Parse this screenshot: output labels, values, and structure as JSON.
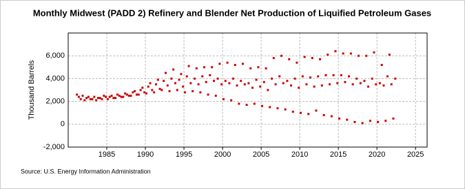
{
  "chart_data": {
    "type": "scatter",
    "title": "Monthly Midwest (PADD 2) Refinery and Blender Net Production of Liquified Petroleum Gases",
    "y_label": "Thousand Barrels",
    "source": "Source: U.S. Energy Information Administration",
    "xlim": [
      1980,
      2026.5
    ],
    "xticks": [
      1985,
      1990,
      1995,
      2000,
      2005,
      2010,
      2015,
      2020,
      2025
    ],
    "ylim": [
      -2000,
      8000
    ],
    "yticks": [
      {
        "value": -2000,
        "label": "-2,000"
      },
      0,
      {
        "value": 2000,
        "label": "2,000"
      },
      {
        "value": 4000,
        "label": "4,000"
      },
      {
        "value": 6000,
        "label": "6,000"
      }
    ],
    "grid": true,
    "color": "#cc0000",
    "x": [
      1981.125,
      1981.375,
      1981.625,
      1981.875,
      1982.125,
      1982.375,
      1982.625,
      1982.875,
      1983.125,
      1983.375,
      1983.625,
      1983.875,
      1984.125,
      1984.375,
      1984.625,
      1984.875,
      1985.125,
      1985.375,
      1985.625,
      1985.875,
      1986.125,
      1986.375,
      1986.625,
      1986.875,
      1987.125,
      1987.375,
      1987.625,
      1987.875,
      1988.125,
      1988.375,
      1988.625,
      1988.875,
      1989.125,
      1989.375,
      1989.625,
      1989.875,
      1990.125,
      1990.375,
      1990.625,
      1990.875,
      1991.125,
      1991.375,
      1991.625,
      1991.875,
      1992.125,
      1992.375,
      1992.625,
      1992.875,
      1993.125,
      1993.375,
      1993.625,
      1993.875,
      1994.125,
      1994.375,
      1994.625,
      1994.875,
      1995.125,
      1995.375,
      1995.625,
      1995.875,
      1996.125,
      1996.375,
      1996.625,
      1996.875,
      1997.125,
      1997.375,
      1997.625,
      1997.875,
      1998.125,
      1998.375,
      1998.625,
      1998.875,
      1999.125,
      1999.375,
      1999.625,
      1999.875,
      2000.125,
      2000.375,
      2000.625,
      2000.875,
      2001.125,
      2001.375,
      2001.625,
      2001.875,
      2002.125,
      2002.375,
      2002.625,
      2002.875,
      2003.125,
      2003.375,
      2003.625,
      2003.875,
      2004.125,
      2004.375,
      2004.625,
      2004.875,
      2005.125,
      2005.375,
      2005.625,
      2005.875,
      2006.125,
      2006.375,
      2006.625,
      2006.875,
      2007.125,
      2007.375,
      2007.625,
      2007.875,
      2008.125,
      2008.375,
      2008.625,
      2008.875,
      2009.125,
      2009.375,
      2009.625,
      2009.875,
      2010.125,
      2010.375,
      2010.625,
      2010.875,
      2011.125,
      2011.375,
      2011.625,
      2011.875,
      2012.125,
      2012.375,
      2012.625,
      2012.875,
      2013.125,
      2013.375,
      2013.625,
      2013.875,
      2014.125,
      2014.375,
      2014.625,
      2014.875,
      2015.125,
      2015.375,
      2015.625,
      2015.875,
      2016.125,
      2016.375,
      2016.625,
      2016.875,
      2017.125,
      2017.375,
      2017.625,
      2017.875,
      2018.125,
      2018.375,
      2018.625,
      2018.875,
      2019.125,
      2019.375,
      2019.625,
      2019.875,
      2020.125,
      2020.375,
      2020.625,
      2020.875,
      2021.125,
      2021.375,
      2021.625,
      2021.875,
      2022.125,
      2022.375
    ],
    "values": [
      2600,
      2400,
      2200,
      2500,
      2100,
      2300,
      2400,
      2200,
      2200,
      2400,
      2100,
      2300,
      2300,
      2200,
      2500,
      2400,
      2200,
      2400,
      2500,
      2300,
      2300,
      2600,
      2500,
      2400,
      2400,
      2700,
      2600,
      2500,
      2500,
      2800,
      2900,
      2600,
      2600,
      3000,
      3200,
      2800,
      2700,
      3300,
      3600,
      3000,
      2800,
      3500,
      3900,
      3100,
      3000,
      3800,
      4500,
      3400,
      2900,
      4000,
      4800,
      3600,
      3000,
      3900,
      4400,
      3300,
      2800,
      4200,
      5100,
      3600,
      2900,
      4000,
      4900,
      3500,
      2800,
      4200,
      5000,
      3700,
      2600,
      4300,
      5000,
      3800,
      2500,
      4000,
      5300,
      3500,
      2200,
      3800,
      5400,
      3600,
      2100,
      4000,
      5200,
      3400,
      1800,
      3800,
      5300,
      3500,
      1700,
      3600,
      4900,
      3200,
      1800,
      3900,
      5000,
      3300,
      1600,
      3700,
      4900,
      3000,
      1500,
      4000,
      5800,
      3500,
      1400,
      4200,
      6000,
      3600,
      1300,
      3800,
      5700,
      3400,
      1100,
      4000,
      5400,
      3200,
      1000,
      4200,
      5900,
      3500,
      900,
      4100,
      5800,
      3300,
      1200,
      4200,
      5700,
      3400,
      800,
      4300,
      6100,
      3500,
      700,
      4300,
      6400,
      3600,
      500,
      4300,
      6200,
      3700,
      400,
      4200,
      6200,
      3500,
      200,
      4000,
      6000,
      3600,
      100,
      3800,
      6000,
      3300,
      300,
      4000,
      6300,
      3500,
      200,
      3600,
      5200,
      3400,
      300,
      4200,
      6100,
      3500,
      500,
      4000
    ]
  }
}
